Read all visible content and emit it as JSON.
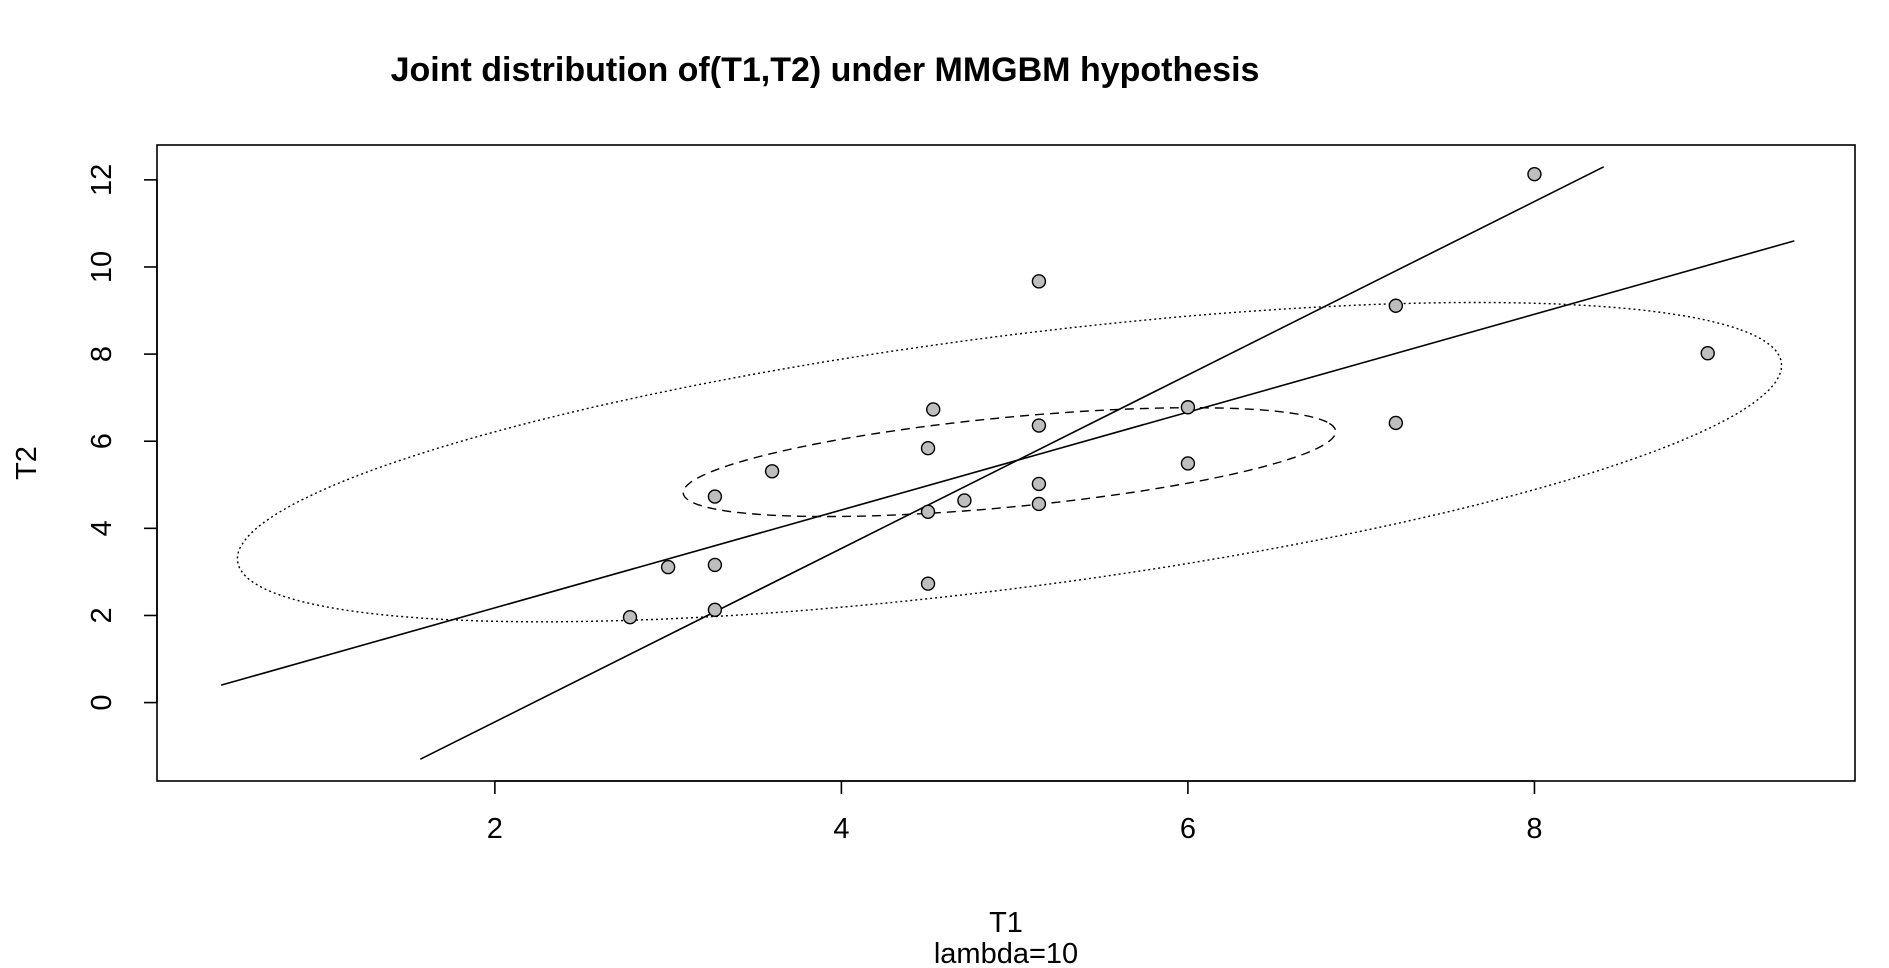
{
  "chart_data": {
    "type": "scatter",
    "title": "Joint distribution of(T1,T2) under MMGBM hypothesis",
    "xlabel": "T1",
    "ylabel": "T2",
    "sub": "lambda=10",
    "xlim": [
      0.05,
      9.85
    ],
    "ylim": [
      -1.8,
      12.8
    ],
    "xticks": [
      2,
      4,
      6,
      8
    ],
    "yticks": [
      0,
      2,
      4,
      6,
      8,
      10,
      12
    ],
    "grid": false,
    "points": [
      {
        "x": 2.78,
        "y": 1.96
      },
      {
        "x": 3.0,
        "y": 3.11
      },
      {
        "x": 3.27,
        "y": 2.13
      },
      {
        "x": 3.27,
        "y": 3.16
      },
      {
        "x": 3.27,
        "y": 4.73
      },
      {
        "x": 3.6,
        "y": 5.31
      },
      {
        "x": 4.5,
        "y": 2.73
      },
      {
        "x": 4.5,
        "y": 4.38
      },
      {
        "x": 4.5,
        "y": 5.84
      },
      {
        "x": 4.53,
        "y": 6.73
      },
      {
        "x": 4.71,
        "y": 4.64
      },
      {
        "x": 5.14,
        "y": 4.56
      },
      {
        "x": 5.14,
        "y": 5.02
      },
      {
        "x": 5.14,
        "y": 6.36
      },
      {
        "x": 5.14,
        "y": 9.67
      },
      {
        "x": 6.0,
        "y": 5.49
      },
      {
        "x": 6.0,
        "y": 6.78
      },
      {
        "x": 7.2,
        "y": 6.42
      },
      {
        "x": 7.2,
        "y": 9.11
      },
      {
        "x": 8.0,
        "y": 12.13
      },
      {
        "x": 9.0,
        "y": 8.02
      }
    ],
    "regression_lines": [
      {
        "name": "steep",
        "from": [
          1.57,
          -1.3
        ],
        "to": [
          8.4,
          12.3
        ]
      },
      {
        "name": "shallow",
        "from": [
          0.42,
          0.4
        ],
        "to": [
          9.5,
          10.6
        ]
      }
    ],
    "ellipses": [
      {
        "name": "inner",
        "cx": 4.97,
        "cy": 5.52,
        "a": 2.05,
        "b": 0.95,
        "angle_deg": 26.5,
        "style": "dashed"
      },
      {
        "name": "outer",
        "cx": 4.97,
        "cy": 5.52,
        "a": 5.2,
        "b": 2.5,
        "angle_deg": 36.0,
        "style": "dotted"
      }
    ],
    "colors": {
      "point_fill": "#bebebe",
      "stroke": "#000000",
      "background": "#ffffff"
    }
  }
}
